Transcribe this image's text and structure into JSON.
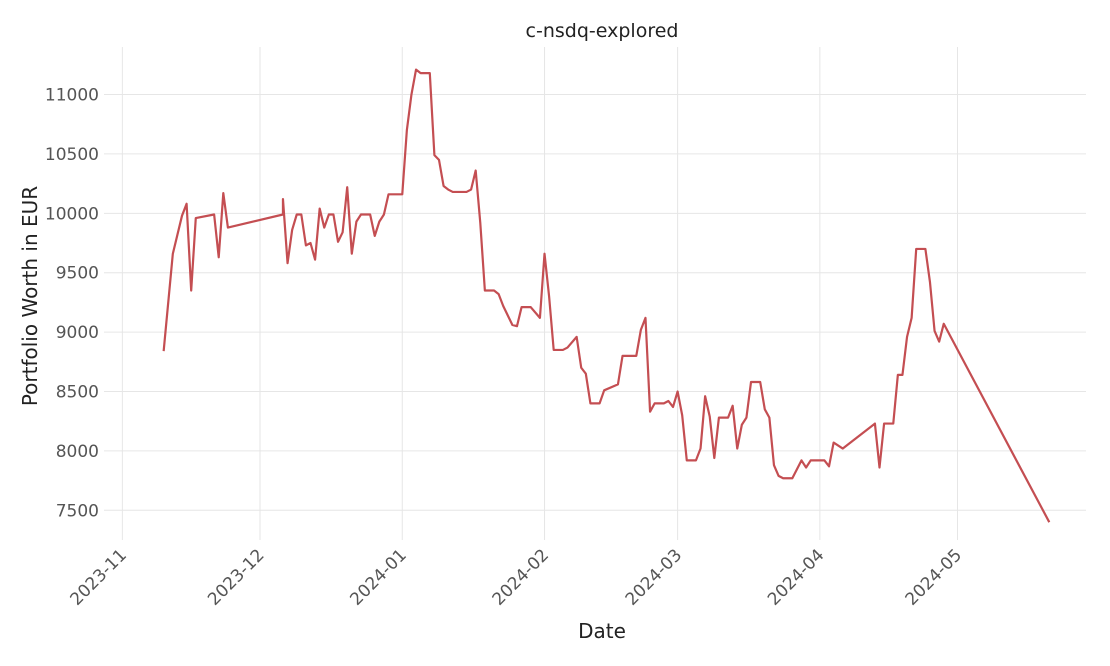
{
  "chart_data": {
    "type": "line",
    "title": "c-nsdq-explored",
    "xlabel": "Date",
    "ylabel": "Portfolio Worth in EUR",
    "grid": true,
    "x_ticks": [
      "2023-11",
      "2023-12",
      "2024-01",
      "2024-02",
      "2024-03",
      "2024-04",
      "2024-05"
    ],
    "y_ticks": [
      7500,
      8000,
      8500,
      9000,
      9500,
      10000,
      10500,
      11000
    ],
    "ylim": [
      7250,
      11400
    ],
    "xlim": [
      "2023-10-28",
      "2024-05-29"
    ],
    "colors": {
      "line": "#c44e52",
      "grid": "#e6e6e6"
    },
    "series": [
      {
        "points": [
          [
            "2023-11-10",
            8840
          ],
          [
            "2023-11-12",
            9660
          ],
          [
            "2023-11-14",
            9980
          ],
          [
            "2023-11-15",
            10080
          ],
          [
            "2023-11-16",
            9350
          ],
          [
            "2023-11-17",
            9960
          ],
          [
            "2023-11-21",
            9990
          ],
          [
            "2023-11-22",
            9630
          ],
          [
            "2023-11-23",
            10170
          ],
          [
            "2023-11-24",
            9880
          ],
          [
            "2023-12-06",
            9990
          ],
          [
            "2023-12-06",
            10120
          ],
          [
            "2023-12-07",
            9580
          ],
          [
            "2023-12-08",
            9860
          ],
          [
            "2023-12-09",
            9990
          ],
          [
            "2023-12-10",
            9990
          ],
          [
            "2023-12-11",
            9730
          ],
          [
            "2023-12-12",
            9750
          ],
          [
            "2023-12-13",
            9610
          ],
          [
            "2023-12-14",
            10040
          ],
          [
            "2023-12-15",
            9880
          ],
          [
            "2023-12-16",
            9990
          ],
          [
            "2023-12-17",
            9990
          ],
          [
            "2023-12-18",
            9760
          ],
          [
            "2023-12-19",
            9840
          ],
          [
            "2023-12-20",
            10220
          ],
          [
            "2023-12-21",
            9660
          ],
          [
            "2023-12-22",
            9930
          ],
          [
            "2023-12-23",
            9990
          ],
          [
            "2023-12-25",
            9990
          ],
          [
            "2023-12-26",
            9810
          ],
          [
            "2023-12-27",
            9930
          ],
          [
            "2023-12-28",
            9990
          ],
          [
            "2023-12-29",
            10160
          ],
          [
            "2024-01-01",
            10160
          ],
          [
            "2024-01-02",
            10700
          ],
          [
            "2024-01-03",
            11000
          ],
          [
            "2024-01-04",
            11210
          ],
          [
            "2024-01-05",
            11180
          ],
          [
            "2024-01-07",
            11180
          ],
          [
            "2024-01-08",
            10490
          ],
          [
            "2024-01-09",
            10450
          ],
          [
            "2024-01-10",
            10230
          ],
          [
            "2024-01-11",
            10200
          ],
          [
            "2024-01-12",
            10180
          ],
          [
            "2024-01-15",
            10180
          ],
          [
            "2024-01-16",
            10200
          ],
          [
            "2024-01-17",
            10360
          ],
          [
            "2024-01-18",
            9920
          ],
          [
            "2024-01-19",
            9350
          ],
          [
            "2024-01-21",
            9350
          ],
          [
            "2024-01-22",
            9320
          ],
          [
            "2024-01-23",
            9220
          ],
          [
            "2024-01-25",
            9060
          ],
          [
            "2024-01-26",
            9050
          ],
          [
            "2024-01-27",
            9210
          ],
          [
            "2024-01-29",
            9210
          ],
          [
            "2024-01-31",
            9120
          ],
          [
            "2024-02-01",
            9660
          ],
          [
            "2024-02-02",
            9300
          ],
          [
            "2024-02-03",
            8850
          ],
          [
            "2024-02-05",
            8850
          ],
          [
            "2024-02-06",
            8870
          ],
          [
            "2024-02-08",
            8960
          ],
          [
            "2024-02-09",
            8700
          ],
          [
            "2024-02-10",
            8650
          ],
          [
            "2024-02-11",
            8400
          ],
          [
            "2024-02-13",
            8400
          ],
          [
            "2024-02-14",
            8510
          ],
          [
            "2024-02-17",
            8560
          ],
          [
            "2024-02-18",
            8800
          ],
          [
            "2024-02-21",
            8800
          ],
          [
            "2024-02-22",
            9020
          ],
          [
            "2024-02-23",
            9120
          ],
          [
            "2024-02-24",
            8330
          ],
          [
            "2024-02-25",
            8400
          ],
          [
            "2024-02-27",
            8400
          ],
          [
            "2024-02-28",
            8420
          ],
          [
            "2024-02-29",
            8370
          ],
          [
            "2024-03-01",
            8500
          ],
          [
            "2024-03-02",
            8300
          ],
          [
            "2024-03-03",
            7920
          ],
          [
            "2024-03-05",
            7920
          ],
          [
            "2024-03-06",
            8020
          ],
          [
            "2024-03-07",
            8460
          ],
          [
            "2024-03-08",
            8290
          ],
          [
            "2024-03-09",
            7940
          ],
          [
            "2024-03-10",
            8280
          ],
          [
            "2024-03-12",
            8280
          ],
          [
            "2024-03-13",
            8380
          ],
          [
            "2024-03-14",
            8020
          ],
          [
            "2024-03-15",
            8220
          ],
          [
            "2024-03-16",
            8280
          ],
          [
            "2024-03-17",
            8580
          ],
          [
            "2024-03-19",
            8580
          ],
          [
            "2024-03-20",
            8350
          ],
          [
            "2024-03-21",
            8280
          ],
          [
            "2024-03-22",
            7880
          ],
          [
            "2024-03-23",
            7790
          ],
          [
            "2024-03-24",
            7770
          ],
          [
            "2024-03-26",
            7770
          ],
          [
            "2024-03-28",
            7920
          ],
          [
            "2024-03-29",
            7860
          ],
          [
            "2024-03-30",
            7920
          ],
          [
            "2024-04-02",
            7920
          ],
          [
            "2024-04-03",
            7870
          ],
          [
            "2024-04-04",
            8070
          ],
          [
            "2024-04-06",
            8020
          ],
          [
            "2024-04-13",
            8230
          ],
          [
            "2024-04-14",
            7860
          ],
          [
            "2024-04-15",
            8230
          ],
          [
            "2024-04-17",
            8230
          ],
          [
            "2024-04-18",
            8640
          ],
          [
            "2024-04-19",
            8640
          ],
          [
            "2024-04-20",
            8960
          ],
          [
            "2024-04-21",
            9120
          ],
          [
            "2024-04-22",
            9700
          ],
          [
            "2024-04-24",
            9700
          ],
          [
            "2024-04-25",
            9420
          ],
          [
            "2024-04-26",
            9010
          ],
          [
            "2024-04-27",
            8920
          ],
          [
            "2024-04-28",
            9070
          ],
          [
            "2024-05-21",
            7400
          ]
        ]
      }
    ]
  }
}
